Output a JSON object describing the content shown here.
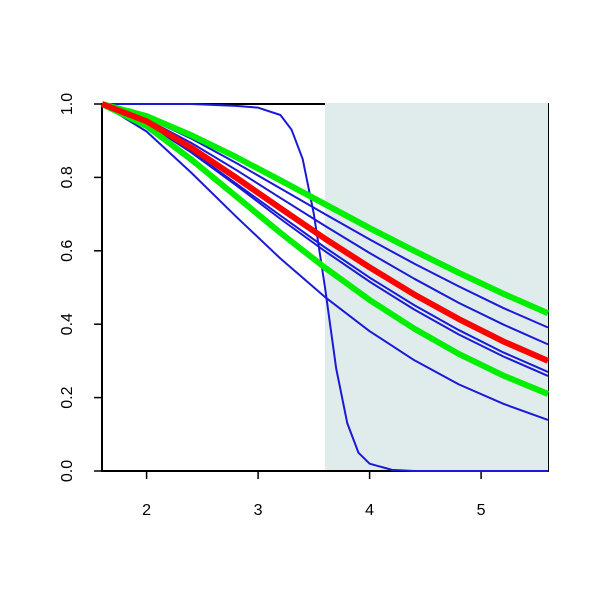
{
  "chart_data": {
    "type": "line",
    "x": [
      1.6,
      2.0,
      2.4,
      2.8,
      3.2,
      3.6,
      4.0,
      4.4,
      4.8,
      5.2,
      5.6
    ],
    "xlim": [
      1.6,
      5.6
    ],
    "ylim": [
      0,
      1
    ],
    "xticks": [
      2,
      3,
      4,
      5
    ],
    "yticks": [
      {
        "value": 0,
        "label": "0.0"
      },
      {
        "value": 0.2,
        "label": "0.2"
      },
      {
        "value": 0.4,
        "label": "0.4"
      },
      {
        "value": 0.6,
        "label": "0.6"
      },
      {
        "value": 0.8,
        "label": "0.8"
      },
      {
        "value": 1,
        "label": "1.0"
      }
    ],
    "shade": {
      "x": [
        3.6,
        5.6
      ],
      "color": "#e0ecec"
    },
    "series": [
      {
        "color": "#1a1ad6",
        "width": 2,
        "x": [
          1.6,
          2.0,
          2.4,
          2.8,
          3.0,
          3.2,
          3.3,
          3.4,
          3.5,
          3.6,
          3.7,
          3.8,
          3.9,
          4.0,
          4.2,
          4.4,
          4.8,
          5.6
        ],
        "values": [
          1,
          1,
          1,
          0.995,
          0.99,
          0.97,
          0.93,
          0.85,
          0.7,
          0.5,
          0.28,
          0.13,
          0.05,
          0.02,
          0.003,
          0,
          0,
          0
        ]
      },
      {
        "color": "#1a1ad6",
        "width": 2,
        "values": [
          1,
          0.963,
          0.906,
          0.84,
          0.77,
          0.7,
          0.631,
          0.565,
          0.503,
          0.444,
          0.391
        ]
      },
      {
        "color": "#1a1ad6",
        "width": 2,
        "values": [
          1,
          0.958,
          0.894,
          0.821,
          0.744,
          0.668,
          0.594,
          0.524,
          0.458,
          0.399,
          0.345
        ]
      },
      {
        "color": "#1a1ad6",
        "width": 2,
        "values": [
          1,
          0.949,
          0.871,
          0.784,
          0.696,
          0.609,
          0.527,
          0.452,
          0.384,
          0.323,
          0.27
        ]
      },
      {
        "color": "#1a1ad6",
        "width": 2,
        "values": [
          1,
          0.947,
          0.868,
          0.779,
          0.687,
          0.599,
          0.516,
          0.44,
          0.372,
          0.312,
          0.259
        ]
      },
      {
        "color": "#1a1ad6",
        "width": 2,
        "values": [
          1,
          0.925,
          0.813,
          0.694,
          0.579,
          0.474,
          0.381,
          0.302,
          0.236,
          0.183,
          0.139
        ]
      },
      {
        "color": "#00ee00",
        "width": 6,
        "values": [
          1,
          0.967,
          0.915,
          0.856,
          0.792,
          0.727,
          0.662,
          0.6,
          0.54,
          0.483,
          0.43
        ]
      },
      {
        "color": "#00ee00",
        "width": 6,
        "values": [
          1,
          0.94,
          0.849,
          0.749,
          0.649,
          0.554,
          0.466,
          0.388,
          0.319,
          0.26,
          0.21
        ]
      },
      {
        "color": "#ff0000",
        "width": 6,
        "values": [
          1,
          0.953,
          0.881,
          0.8,
          0.716,
          0.633,
          0.555,
          0.481,
          0.414,
          0.353,
          0.3
        ]
      }
    ]
  }
}
